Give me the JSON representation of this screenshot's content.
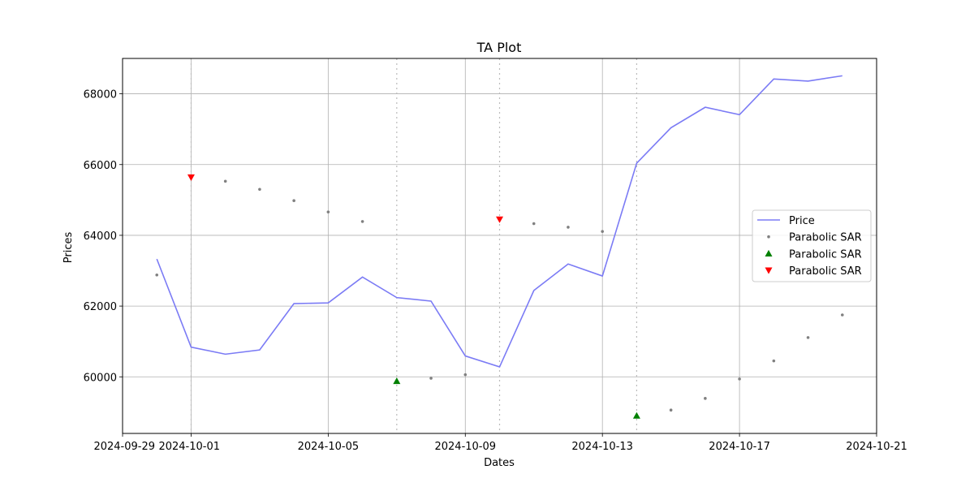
{
  "chart_data": {
    "type": "line",
    "title": "TA Plot",
    "xlabel": "Dates",
    "ylabel": "Prices",
    "xlim": [
      "2024-09-29",
      "2024-10-21"
    ],
    "ylim": [
      58400,
      69000
    ],
    "grid": true,
    "legend_position": "center-right",
    "x_ticks": [
      "2024-09-29",
      "2024-10-01",
      "2024-10-05",
      "2024-10-09",
      "2024-10-13",
      "2024-10-17",
      "2024-10-21"
    ],
    "y_ticks": [
      60000,
      62000,
      64000,
      66000,
      68000
    ],
    "x": [
      "2024-09-30",
      "2024-10-01",
      "2024-10-02",
      "2024-10-03",
      "2024-10-04",
      "2024-10-05",
      "2024-10-06",
      "2024-10-07",
      "2024-10-08",
      "2024-10-09",
      "2024-10-10",
      "2024-10-11",
      "2024-10-12",
      "2024-10-13",
      "2024-10-14",
      "2024-10-15",
      "2024-10-16",
      "2024-10-17",
      "2024-10-18",
      "2024-10-19",
      "2024-10-20"
    ],
    "series": [
      {
        "name": "Price",
        "kind": "line",
        "color": "#7b7bf5",
        "values": [
          63330,
          60840,
          60640,
          60760,
          62070,
          62090,
          62820,
          62240,
          62140,
          60590,
          60280,
          62440,
          63190,
          62850,
          66040,
          67040,
          67620,
          67410,
          68420,
          68360,
          68510
        ]
      },
      {
        "name": "Parabolic SAR",
        "kind": "dots",
        "color": "#808080",
        "x": [
          "2024-09-30",
          "2024-10-02",
          "2024-10-03",
          "2024-10-04",
          "2024-10-05",
          "2024-10-06",
          "2024-10-08",
          "2024-10-09",
          "2024-10-11",
          "2024-10-12",
          "2024-10-13",
          "2024-10-15",
          "2024-10-16",
          "2024-10-17",
          "2024-10-18",
          "2024-10-19",
          "2024-10-20"
        ],
        "values": [
          62880,
          65530,
          65300,
          64980,
          64660,
          64390,
          59960,
          60060,
          64330,
          64230,
          64110,
          59060,
          59390,
          59940,
          60450,
          61110,
          61750
        ]
      },
      {
        "name": "Parabolic SAR",
        "kind": "up-triangle",
        "color": "#008000",
        "x": [
          "2024-10-07",
          "2024-10-14"
        ],
        "values": [
          59880,
          58900
        ]
      },
      {
        "name": "Parabolic SAR",
        "kind": "down-triangle",
        "color": "#ff0000",
        "x": [
          "2024-10-01",
          "2024-10-10"
        ],
        "values": [
          65640,
          64450
        ]
      }
    ],
    "signal_lines": {
      "color": "#bbbbbb",
      "dates": [
        "2024-10-01",
        "2024-10-07",
        "2024-10-10",
        "2024-10-14"
      ]
    }
  }
}
